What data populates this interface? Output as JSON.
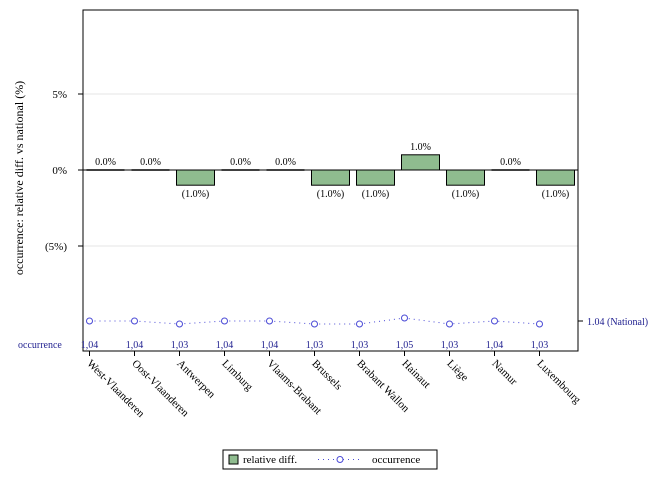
{
  "chart_data": {
    "type": "bar",
    "ylabel": "occurrence: relative diff. vs national (%)",
    "ylim": [
      -10,
      10
    ],
    "yticks": [
      {
        "value": 5,
        "label": "5%"
      },
      {
        "value": 0,
        "label": "0%"
      },
      {
        "value": -5,
        "label": "(5%)"
      }
    ],
    "categories": [
      "West-Vlaanderen",
      "Oost-Vlaanderen",
      "Antwerpen",
      "Limburg",
      "Vlaams-Brabant",
      "Brussels",
      "Brabant Wallon",
      "Hainaut",
      "Liège",
      "Namur",
      "Luxembourg"
    ],
    "series": [
      {
        "name": "relative diff.",
        "type": "bar",
        "color": "#8fbc8f",
        "values": [
          0.0,
          0.0,
          -1.0,
          0.0,
          0.0,
          -1.0,
          -1.0,
          1.0,
          -1.0,
          0.0,
          -1.0
        ],
        "labels": [
          "0.0%",
          "0.0%",
          "(1.0%)",
          "0.0%",
          "0.0%",
          "(1.0%)",
          "(1.0%)",
          "1.0%",
          "(1.0%)",
          "0.0%",
          "(1.0%)"
        ]
      },
      {
        "name": "occurrence",
        "type": "line",
        "color": "#4a4ad6",
        "values": [
          1.04,
          1.04,
          1.03,
          1.04,
          1.04,
          1.03,
          1.03,
          1.05,
          1.03,
          1.04,
          1.03
        ],
        "labels": [
          "1,04",
          "1,04",
          "1,03",
          "1,04",
          "1,04",
          "1,03",
          "1,03",
          "1,05",
          "1,03",
          "1,04",
          "1,03"
        ]
      }
    ],
    "occurrence_row_label": "occurrence",
    "national_label": "1.04 (National)",
    "legend": {
      "position": "bottom",
      "items": [
        "relative diff.",
        "occurrence"
      ]
    },
    "grid": true
  }
}
